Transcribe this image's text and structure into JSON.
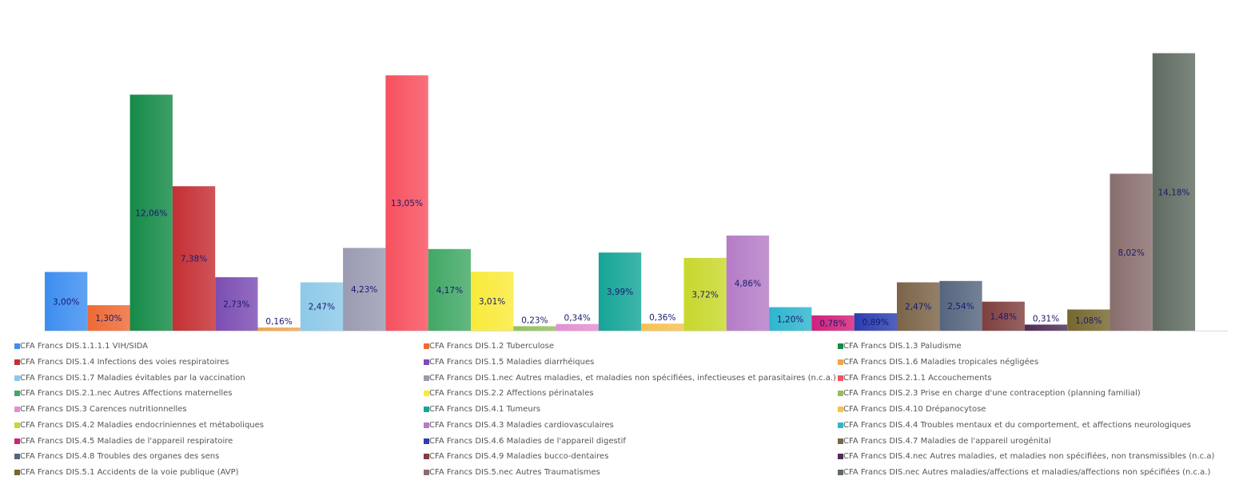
{
  "chart_data": {
    "type": "bar",
    "title": "",
    "xlabel": "",
    "ylabel": "",
    "ylim": [
      0,
      15
    ],
    "grid": false,
    "legend_position": "bottom",
    "series": [
      {
        "name": "CFA Francs DIS.1.1.1.1 VIH/SIDA",
        "value": 3.0,
        "label": "3,00%",
        "color": "#3d8ef0"
      },
      {
        "name": "CFA Francs DIS.1.2 Tuberculose",
        "value": 1.3,
        "label": "1,30%",
        "color": "#ee6a34"
      },
      {
        "name": "CFA Francs DIS.1.3 Paludisme",
        "value": 12.06,
        "label": "12,06%",
        "color": "#148a46"
      },
      {
        "name": "CFA Francs DIS.1.4 Infections des voies respiratoires",
        "value": 7.38,
        "label": "7,38%",
        "color": "#c42f33"
      },
      {
        "name": "CFA Francs DIS.1.5 Maladies diarrhéiques",
        "value": 2.73,
        "label": "2,73%",
        "color": "#7b4db3"
      },
      {
        "name": "CFA Francs DIS.1.6 Maladies tropicales négligées",
        "value": 0.16,
        "label": "0,16%",
        "color": "#f0a548"
      },
      {
        "name": "CFA Francs DIS.1.7 Maladies évitables par la vaccination",
        "value": 2.47,
        "label": "2,47%",
        "color": "#8cc9e8"
      },
      {
        "name": "CFA Francs DIS.1.nec Autres maladies, et maladies non spécifiées, infectieuses et parasitaires (n.c.a.)",
        "value": 4.23,
        "label": "4,23%",
        "color": "#9a9ab2"
      },
      {
        "name": "CFA Francs DIS.2.1.1 Accouchements",
        "value": 13.05,
        "label": "13,05%",
        "color": "#f7505f"
      },
      {
        "name": "CFA Francs DIS.2.1.nec Autres Affections maternelles",
        "value": 4.17,
        "label": "4,17%",
        "color": "#41a865"
      },
      {
        "name": "CFA Francs DIS.2.2 Affections périnatales",
        "value": 3.01,
        "label": "3,01%",
        "color": "#f9ea3a"
      },
      {
        "name": "CFA Francs DIS.2.3 Prise en charge d'une contraception (planning familial)",
        "value": 0.23,
        "label": "0,23%",
        "color": "#93c05f"
      },
      {
        "name": "CFA Francs DIS.3 Carences nutritionnelles",
        "value": 0.34,
        "label": "0,34%",
        "color": "#e48fd1"
      },
      {
        "name": "CFA Francs DIS.4.1 Tumeurs",
        "value": 3.99,
        "label": "3,99%",
        "color": "#15a597"
      },
      {
        "name": "CFA Francs DIS.4.10 Drépanocytose",
        "value": 0.36,
        "label": "0,36%",
        "color": "#f6c14e"
      },
      {
        "name": "CFA Francs DIS.4.2 Maladies endocriniennes et métaboliques",
        "value": 3.72,
        "label": "3,72%",
        "color": "#c8d82c"
      },
      {
        "name": "CFA Francs DIS.4.3 Maladies cardiovasculaires",
        "value": 4.86,
        "label": "4,86%",
        "color": "#b57cc7"
      },
      {
        "name": "CFA Francs DIS.4.4 Troubles mentaux et du comportement, et affections neurologiques",
        "value": 1.2,
        "label": "1,20%",
        "color": "#2fb5ce"
      },
      {
        "name": "CFA Francs DIS.4.5 Maladies de l'appareil respiratoire",
        "value": 0.78,
        "label": "0,78%",
        "color": "#d2217a"
      },
      {
        "name": "CFA Francs DIS.4.6 Maladies de l'appareil digestif",
        "value": 0.89,
        "label": "0,89%",
        "color": "#2a3eb0"
      },
      {
        "name": "CFA Francs DIS.4.7 Maladies de l'appareil urogénital",
        "value": 2.47,
        "label": "2,47%",
        "color": "#7b6448"
      },
      {
        "name": "CFA Francs DIS.4.8 Troubles des organes des sens",
        "value": 2.54,
        "label": "2,54%",
        "color": "#56657e"
      },
      {
        "name": "CFA Francs DIS.4.9 Maladies bucco-dentaires",
        "value": 1.48,
        "label": "1,48%",
        "color": "#7f3f3f"
      },
      {
        "name": "CFA Francs DIS.4.nec Autres maladies, et maladies non spécifiées, non transmissibles (n.c.a)",
        "value": 0.31,
        "label": "0,31%",
        "color": "#4e2c58"
      },
      {
        "name": "CFA Francs DIS.5.1 Accidents de la voie publique (AVP)",
        "value": 1.08,
        "label": "1,08%",
        "color": "#76672e"
      },
      {
        "name": "CFA Francs DIS.5.nec Autres Traumatismes",
        "value": 8.02,
        "label": "8,02%",
        "color": "#8a6e6e"
      },
      {
        "name": "CFA Francs DIS.nec Autres maladies/affections et maladies/affections non spécifiées (n.c.a.)",
        "value": 14.18,
        "label": "14,18%",
        "color": "#5f6b60"
      }
    ]
  }
}
